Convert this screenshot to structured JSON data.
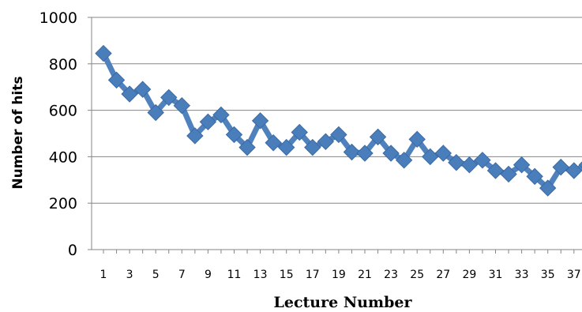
{
  "chart_data": {
    "type": "line",
    "title": "",
    "xlabel": "Lecture Number",
    "ylabel": "Number of hits",
    "ylim": [
      0,
      1000
    ],
    "yticks": [
      "0",
      "200",
      "400",
      "600",
      "800",
      "1000"
    ],
    "xtick_labels": [
      "1",
      "3",
      "5",
      "7",
      "9",
      "11",
      "13",
      "15",
      "17",
      "19",
      "21",
      "23",
      "25",
      "27",
      "29",
      "31",
      "33",
      "35",
      "37"
    ],
    "grid": true,
    "legend": "none",
    "marker": "diamond",
    "series": [
      {
        "x": [
          1,
          2,
          3,
          4,
          5,
          6,
          7,
          8,
          9,
          10,
          11,
          12,
          13,
          14,
          15,
          16,
          17,
          18,
          19,
          20,
          21,
          22,
          23,
          24,
          25,
          26,
          27,
          28,
          29,
          30,
          31,
          32,
          33,
          34,
          35,
          36,
          37,
          38
        ],
        "values": [
          845,
          730,
          670,
          690,
          590,
          655,
          620,
          490,
          550,
          580,
          495,
          440,
          555,
          460,
          440,
          505,
          440,
          465,
          495,
          420,
          415,
          485,
          415,
          385,
          475,
          400,
          415,
          375,
          365,
          385,
          340,
          325,
          365,
          315,
          265,
          355,
          340,
          365
        ]
      }
    ],
    "colors": {
      "series": "#4f81bd",
      "marker_fill": "#4a7ebb",
      "marker_edge": "#3a6aa5",
      "gridline": "#868686",
      "axis": "#868686"
    }
  }
}
